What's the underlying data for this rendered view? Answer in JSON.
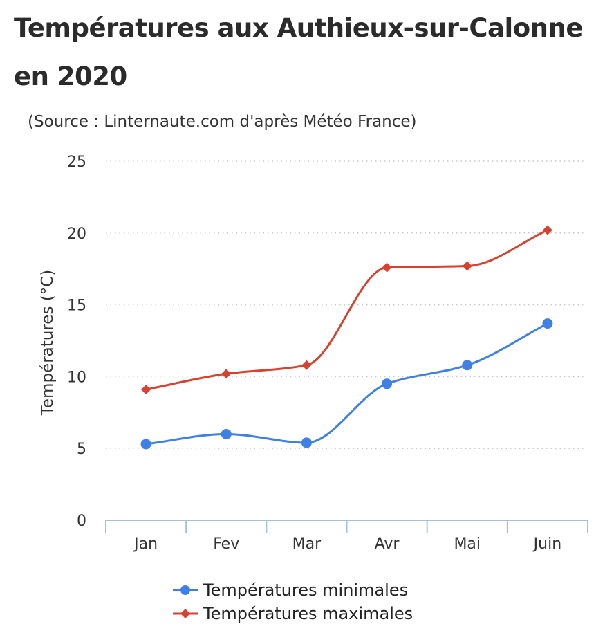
{
  "header": {
    "title": "Températures aux Authieux-sur-Calonne en 2020",
    "subtitle": "(Source : Linternaute.com d'après Météo France)"
  },
  "colors": {
    "min_series": "#3e7fe8",
    "max_series": "#d9412f",
    "grid": "#c8c8c8",
    "axis": "#a9bfd8"
  },
  "chart_data": {
    "type": "line",
    "title": "Températures aux Authieux-sur-Calonne en 2020",
    "subtitle": "(Source : Linternaute.com d'après Météo France)",
    "xlabel": "",
    "ylabel": "Températures (°C)",
    "categories": [
      "Jan",
      "Fev",
      "Mar",
      "Avr",
      "Mai",
      "Juin"
    ],
    "ylim": [
      0,
      25
    ],
    "yticks": [
      0,
      5,
      10,
      15,
      20,
      25
    ],
    "grid": true,
    "legend_position": "bottom",
    "series": [
      {
        "name": "Températures minimales",
        "color": "#3e7fe8",
        "marker": "circle",
        "values": [
          5.3,
          6.0,
          5.4,
          9.5,
          10.8,
          13.7
        ]
      },
      {
        "name": "Températures maximales",
        "color": "#d9412f",
        "marker": "diamond",
        "values": [
          9.1,
          10.2,
          10.8,
          17.6,
          17.7,
          20.2
        ]
      }
    ]
  }
}
